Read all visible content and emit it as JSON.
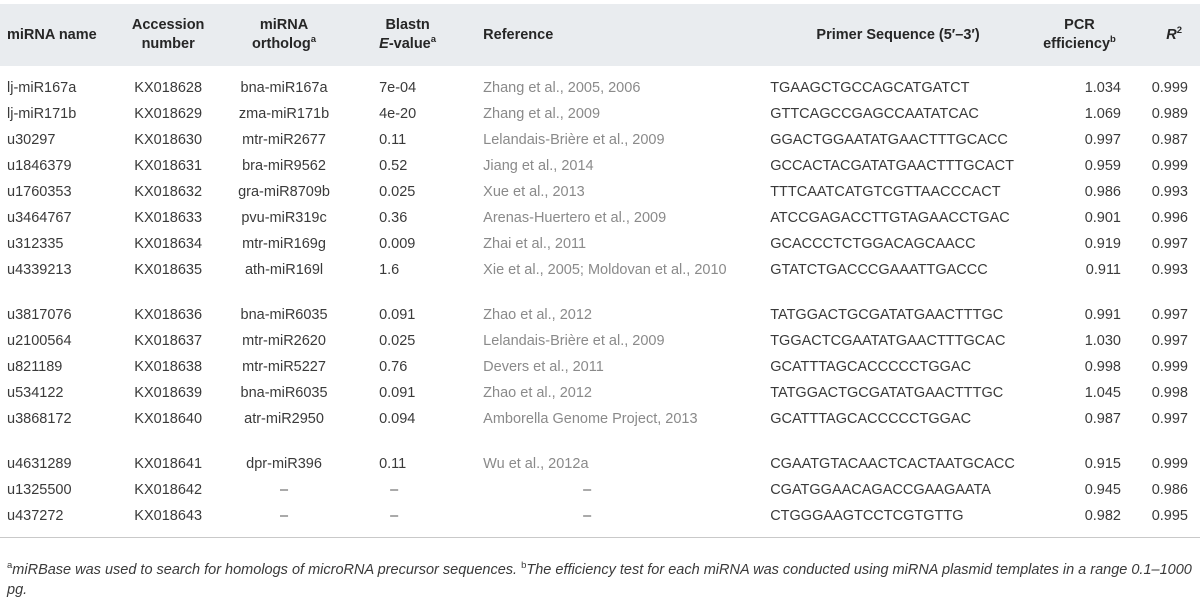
{
  "headers": {
    "name": "miRNA name",
    "accession": [
      "Accession",
      "number"
    ],
    "ortholog": "miRNA",
    "ortholog2": "ortholog",
    "ortholog_sup": "a",
    "blastn": "Blastn",
    "evalue": "E",
    "evalue_rest": "-value",
    "evalue_sup": "a",
    "reference": "Reference",
    "primer": "Primer Sequence (5′–3′)",
    "pcr1": "PCR",
    "pcr2": "efficiency",
    "pcr_sup": "b",
    "r2": "R",
    "r2_sup": "2"
  },
  "rows": [
    {
      "name": "lj-miR167a",
      "acc": "KX018628",
      "orth": "bna-miR167a",
      "e": "7e-04",
      "ref": "Zhang et al., 2005, 2006",
      "primer": "TGAAGCTGCCAGCATGATCT",
      "pcr": "1.034",
      "r2": "0.999"
    },
    {
      "name": "lj-miR171b",
      "acc": "KX018629",
      "orth": "zma-miR171b",
      "e": "4e-20",
      "ref": "Zhang et al., 2009",
      "primer": "GTTCAGCCGAGCCAATATCAC",
      "pcr": "1.069",
      "r2": "0.989"
    },
    {
      "name": "u30297",
      "acc": "KX018630",
      "orth": "mtr-miR2677",
      "e": "0.11",
      "ref": "Lelandais-Brière et al., 2009",
      "primer": "GGACTGGAATATGAACTTTGCACC",
      "pcr": "0.997",
      "r2": "0.987"
    },
    {
      "name": "u1846379",
      "acc": "KX018631",
      "orth": "bra-miR9562",
      "e": "0.52",
      "ref": "Jiang et al., 2014",
      "primer": "GCCACTACGATATGAACTTTGCACT",
      "pcr": "0.959",
      "r2": "0.999"
    },
    {
      "name": "u1760353",
      "acc": "KX018632",
      "orth": "gra-miR8709b",
      "e": "0.025",
      "ref": "Xue et al., 2013",
      "primer": "TTTCAATCATGTCGTTAACCCACT",
      "pcr": "0.986",
      "r2": "0.993"
    },
    {
      "name": "u3464767",
      "acc": "KX018633",
      "orth": "pvu-miR319c",
      "e": "0.36",
      "ref": "Arenas-Huertero et al., 2009",
      "primer": "ATCCGAGACCTTGTAGAACCTGAC",
      "pcr": "0.901",
      "r2": "0.996"
    },
    {
      "name": "u312335",
      "acc": "KX018634",
      "orth": "mtr-miR169g",
      "e": "0.009",
      "ref": "Zhai et al., 2011",
      "primer": "GCACCCTCTGGACAGCAACC",
      "pcr": "0.919",
      "r2": "0.997"
    },
    {
      "name": "u4339213",
      "acc": "KX018635",
      "orth": "ath-miR169l",
      "e": "1.6",
      "ref": "Xie et al., 2005; Moldovan et al., 2010",
      "primer": "GTATCTGACCCGAAATTGACCC",
      "pcr": "0.911",
      "r2": "0.993",
      "tall": true
    },
    {
      "name": "u3817076",
      "acc": "KX018636",
      "orth": "bna-miR6035",
      "e": "0.091",
      "ref": "Zhao et al., 2012",
      "primer": "TATGGACTGCGATATGAACTTTGC",
      "pcr": "0.991",
      "r2": "0.997"
    },
    {
      "name": "u2100564",
      "acc": "KX018637",
      "orth": "mtr-miR2620",
      "e": "0.025",
      "ref": "Lelandais-Brière et al., 2009",
      "primer": "TGGACTCGAATATGAACTTTGCAC",
      "pcr": "1.030",
      "r2": "0.997"
    },
    {
      "name": "u821189",
      "acc": "KX018638",
      "orth": "mtr-miR5227",
      "e": "0.76",
      "ref": "Devers et al., 2011",
      "primer": "GCATTTAGCACCCCCTGGAC",
      "pcr": "0.998",
      "r2": "0.999"
    },
    {
      "name": "u534122",
      "acc": "KX018639",
      "orth": "bna-miR6035",
      "e": "0.091",
      "ref": "Zhao et al., 2012",
      "primer": "TATGGACTGCGATATGAACTTTGC",
      "pcr": "1.045",
      "r2": "0.998"
    },
    {
      "name": "u3868172",
      "acc": "KX018640",
      "orth": "atr-miR2950",
      "e": "0.094",
      "ref": "Amborella Genome Project, 2013",
      "primer": "GCATTTAGCACCCCCTGGAC",
      "pcr": "0.987",
      "r2": "0.997",
      "tall": true
    },
    {
      "name": "u4631289",
      "acc": "KX018641",
      "orth": "dpr-miR396",
      "e": "0.11",
      "ref": "Wu et al., 2012a",
      "primer": "CGAATGTACAACTCACTAATGCACC",
      "pcr": "0.915",
      "r2": "0.999"
    },
    {
      "name": "u1325500",
      "acc": "KX018642",
      "orth": "–",
      "e": "–",
      "ref": "–",
      "primer": "CGATGGAACAGACCGAAGAATA",
      "pcr": "0.945",
      "r2": "0.986",
      "dash": true
    },
    {
      "name": "u437272",
      "acc": "KX018643",
      "orth": "–",
      "e": "–",
      "ref": "–",
      "primer": "CTGGGAAGTCCTCGTGTTG",
      "pcr": "0.982",
      "r2": "0.995",
      "dash": true
    }
  ],
  "footnotes": {
    "a_mark": "a",
    "a_text": "miRBase was used to search for homologs of microRNA precursor sequences.",
    "b_mark": "b",
    "b_text": "The efficiency test for each miRNA was conducted using miRNA plasmid templates in a range 0.1–1000 pg."
  }
}
